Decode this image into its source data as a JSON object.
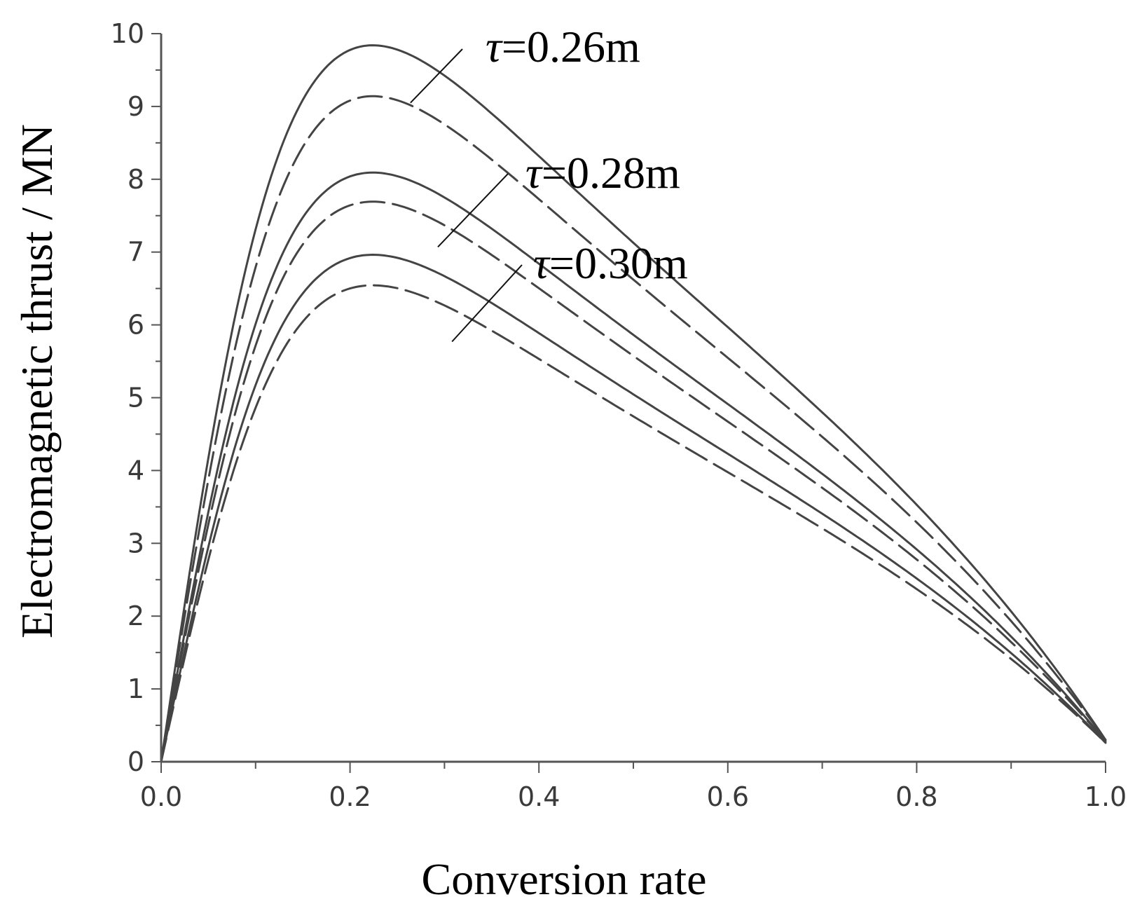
{
  "chart_data": {
    "type": "line",
    "xlabel": "Conversion rate",
    "ylabel": "Electromagnetic thrust / MN",
    "xlim": [
      0,
      1
    ],
    "ylim": [
      0,
      10
    ],
    "x_ticks": [
      "0.0",
      "0.2",
      "0.4",
      "0.6",
      "0.8",
      "1.0"
    ],
    "y_ticks": [
      "0",
      "1",
      "2",
      "3",
      "4",
      "5",
      "6",
      "7",
      "8",
      "9",
      "10"
    ],
    "grid": false,
    "colors": {
      "line": "#444444",
      "axis": "#555555",
      "text": "#000000"
    },
    "series": [
      {
        "name": "τ=0.26m solid",
        "style": "solid",
        "peak_x": 0.225,
        "peak_y": 9.85,
        "end_y": 0.3
      },
      {
        "name": "τ=0.26m dashed",
        "style": "dashed",
        "peak_x": 0.225,
        "peak_y": 9.15,
        "end_y": 0.3
      },
      {
        "name": "τ=0.28m solid",
        "style": "solid",
        "peak_x": 0.225,
        "peak_y": 8.1,
        "end_y": 0.28
      },
      {
        "name": "τ=0.28m dashed",
        "style": "dashed",
        "peak_x": 0.225,
        "peak_y": 7.7,
        "end_y": 0.28
      },
      {
        "name": "τ=0.30m solid",
        "style": "solid",
        "peak_x": 0.225,
        "peak_y": 6.97,
        "end_y": 0.26
      },
      {
        "name": "τ=0.30m dashed",
        "style": "dashed",
        "peak_x": 0.225,
        "peak_y": 6.55,
        "end_y": 0.26
      }
    ],
    "annotations": [
      {
        "symbol": "τ",
        "text": "=0.26m",
        "points_to_x": 0.264,
        "points_to_y": 9.05
      },
      {
        "symbol": "τ",
        "text": "=0.28m",
        "points_to_x": 0.293,
        "points_to_y": 7.07
      },
      {
        "symbol": "τ",
        "text": "=0.30m",
        "points_to_x": 0.308,
        "points_to_y": 5.77
      }
    ]
  }
}
